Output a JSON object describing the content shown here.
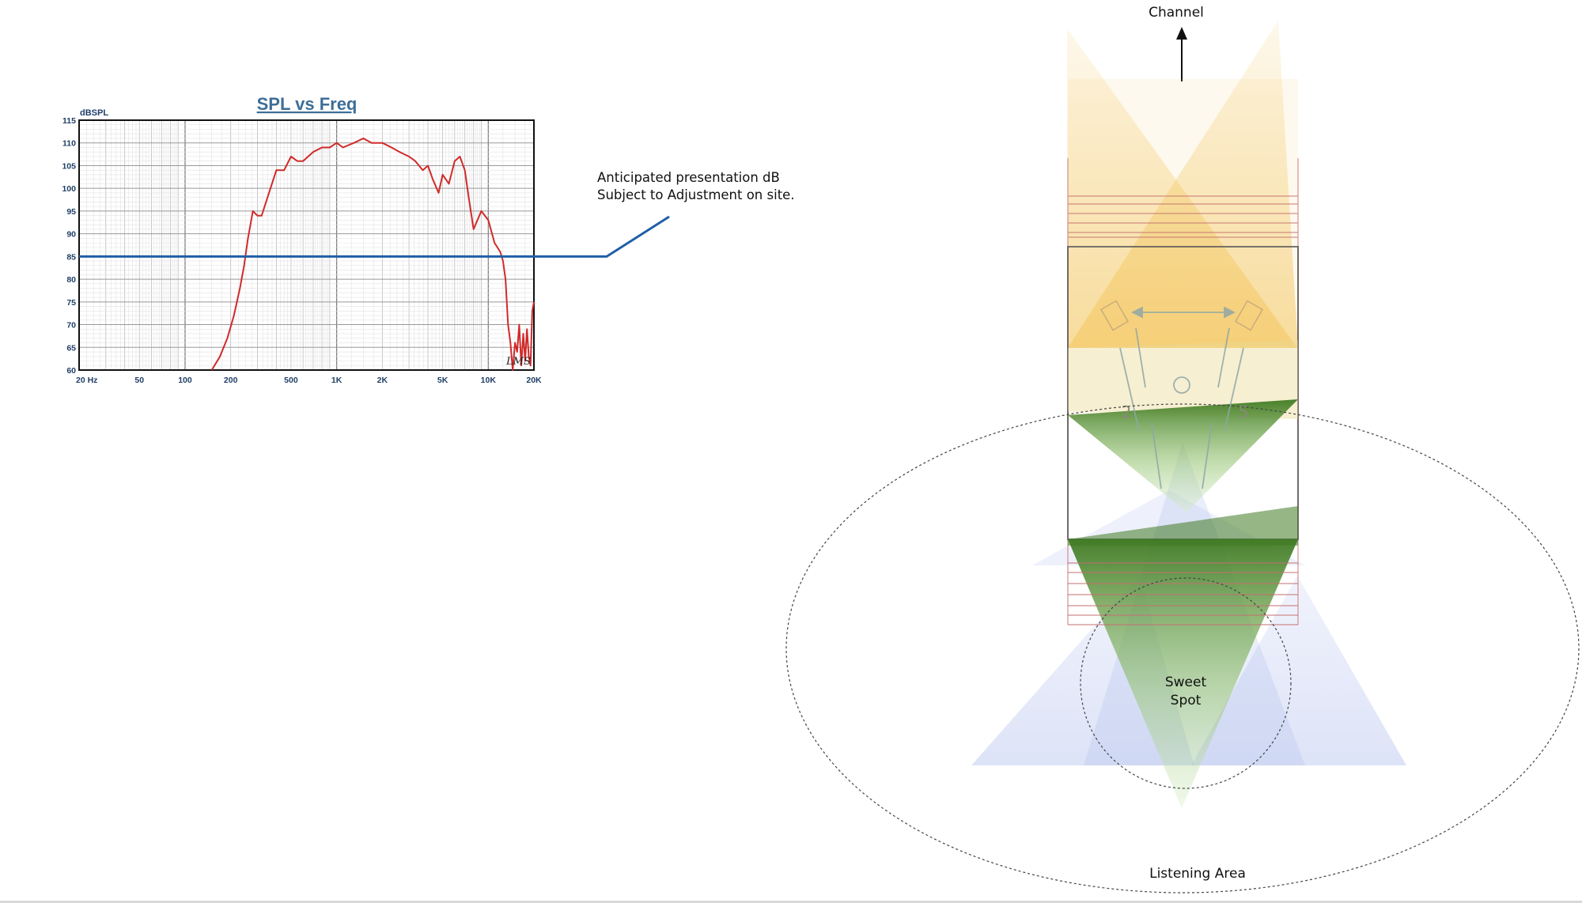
{
  "chart": {
    "title": "SPL vs Freq",
    "y_unit": "dBSPL",
    "x_tick_labels": [
      "20  Hz",
      "50",
      "100",
      "200",
      "500",
      "1K",
      "2K",
      "5K",
      "10K",
      "20K"
    ],
    "y_tick_labels": [
      "115",
      "110",
      "105",
      "100",
      "95",
      "90",
      "85",
      "80",
      "75",
      "70",
      "65",
      "60"
    ],
    "watermark": "LMS",
    "colors": {
      "curve": "#d02a2a",
      "reference": "#1f5fa8",
      "grid": "#aaaaaa"
    }
  },
  "chart_data": {
    "type": "line",
    "title": "SPL vs Freq",
    "xlabel": "",
    "ylabel": "dBSPL",
    "xscale": "log",
    "xlim": [
      20,
      20000
    ],
    "ylim": [
      60,
      115
    ],
    "grid": true,
    "series": [
      {
        "x": [
          150,
          170,
          190,
          210,
          230,
          245,
          260,
          280,
          300,
          320,
          350,
          400,
          450,
          500,
          550,
          600,
          700,
          800,
          900,
          1000,
          1100,
          1300,
          1500,
          1700,
          2000,
          2300,
          2600,
          3000,
          3300,
          3700,
          4000,
          4300,
          4700,
          5000,
          5500,
          6000,
          6500,
          7000,
          7500,
          8000,
          9000,
          10000,
          11000,
          12000,
          12500,
          13000,
          13500,
          14000,
          14500,
          15000,
          15500,
          16000,
          16500,
          17000,
          17500,
          18000,
          18500,
          19000,
          19500,
          20000
        ],
        "y": [
          60,
          63,
          67,
          72,
          78,
          83,
          89,
          95,
          94,
          94,
          98,
          104,
          104,
          107,
          106,
          106,
          108,
          109,
          109,
          110,
          109,
          110,
          111,
          110,
          110,
          109,
          108,
          107,
          106,
          104,
          105,
          102,
          99,
          103,
          101,
          106,
          107,
          104,
          97,
          91,
          95,
          93,
          88,
          86,
          84,
          80,
          70,
          66,
          60,
          66,
          64,
          70,
          61,
          68,
          62,
          69,
          63,
          61,
          73,
          75
        ]
      },
      {
        "x": [
          20,
          20000
        ],
        "y": [
          85,
          85
        ]
      }
    ],
    "annotations": [
      "Anticipated presentation dB",
      "Subject to Adjustment on site."
    ]
  },
  "annotation": {
    "line1": "Anticipated presentation dB",
    "line2": "Subject to Adjustment on site."
  },
  "diagram": {
    "top_label": "Channel",
    "sweet_spot_line1": "Sweet",
    "sweet_spot_line2": "Spot",
    "bottom_label": "Listening Area",
    "speaker_num_left": "2",
    "speaker_num_right": "5",
    "colors": {
      "yellow": "#f3c55a",
      "green": "#4f8a2d",
      "blue": "#9fb0ea",
      "outline": "#444444",
      "rails": "#c47070"
    }
  }
}
